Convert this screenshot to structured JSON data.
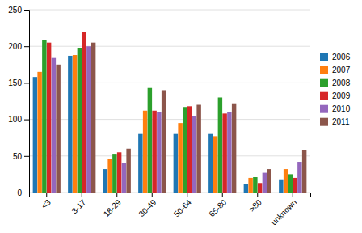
{
  "chart_data": {
    "type": "bar",
    "categories": [
      "<3",
      "3-17",
      "18-29",
      "30-49",
      "50-64",
      "65-80",
      ">80",
      "unknown"
    ],
    "series": [
      {
        "name": "2006",
        "values": [
          158,
          187,
          32,
          80,
          80,
          80,
          12,
          18
        ]
      },
      {
        "name": "2007",
        "values": [
          165,
          188,
          46,
          112,
          95,
          77,
          20,
          32
        ]
      },
      {
        "name": "2008",
        "values": [
          208,
          198,
          53,
          143,
          117,
          130,
          21,
          25
        ]
      },
      {
        "name": "2009",
        "values": [
          205,
          220,
          55,
          112,
          118,
          108,
          13,
          20
        ]
      },
      {
        "name": "2010",
        "values": [
          184,
          200,
          40,
          110,
          105,
          110,
          27,
          42
        ]
      },
      {
        "name": "2011",
        "values": [
          175,
          205,
          60,
          140,
          120,
          122,
          32,
          58
        ]
      }
    ],
    "ylim": [
      0,
      250
    ],
    "yticks": [
      0,
      50,
      100,
      150,
      200,
      250
    ],
    "grid": true,
    "legend": "right"
  }
}
